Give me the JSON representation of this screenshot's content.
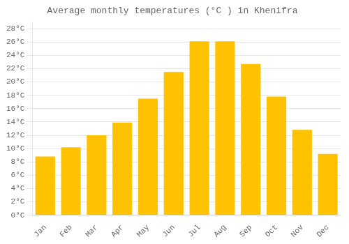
{
  "chart_data": {
    "type": "bar",
    "title": "Average monthly temperatures (°C ) in Khenifra",
    "categories": [
      "Jan",
      "Feb",
      "Mar",
      "Apr",
      "May",
      "Jun",
      "Jul",
      "Aug",
      "Sep",
      "Oct",
      "Nov",
      "Dec"
    ],
    "values": [
      8.8,
      10.2,
      12.0,
      13.9,
      17.5,
      21.5,
      26.1,
      26.1,
      22.7,
      17.8,
      12.8,
      9.2
    ],
    "color": "#FFC200",
    "ylim": [
      0,
      29
    ],
    "yticks": [
      {
        "value": 0,
        "label": "0°C"
      },
      {
        "value": 2,
        "label": "2°C"
      },
      {
        "value": 4,
        "label": "4°C"
      },
      {
        "value": 6,
        "label": "6°C"
      },
      {
        "value": 8,
        "label": "8°C"
      },
      {
        "value": 10,
        "label": "10°C"
      },
      {
        "value": 12,
        "label": "12°C"
      },
      {
        "value": 14,
        "label": "14°C"
      },
      {
        "value": 16,
        "label": "16°C"
      },
      {
        "value": 18,
        "label": "18°C"
      },
      {
        "value": 20,
        "label": "20°C"
      },
      {
        "value": 22,
        "label": "22°C"
      },
      {
        "value": 24,
        "label": "24°C"
      },
      {
        "value": 26,
        "label": "26°C"
      },
      {
        "value": 28,
        "label": "28°C"
      }
    ],
    "grid": true
  }
}
